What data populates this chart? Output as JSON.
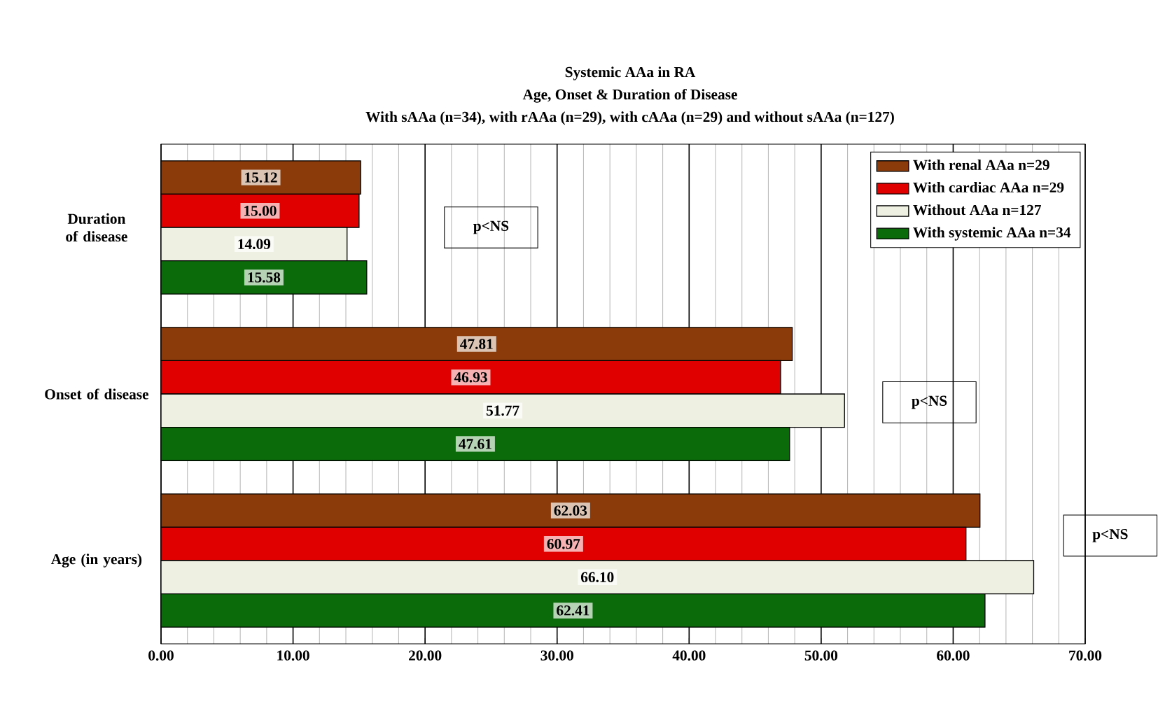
{
  "chart_data": {
    "type": "bar",
    "orientation": "horizontal",
    "title": "Systemic AAa in RA",
    "subtitle": "Age, Onset & Duration of Disease",
    "categories": [
      "Duration of disease",
      "Onset of disease",
      "Age (in years)"
    ],
    "series": [
      {
        "name": "With renal AAa n=29",
        "color": "#8b3a0a",
        "values": [
          15.12,
          47.81,
          62.03
        ],
        "value_labels": [
          "15.12",
          "47.81",
          "62.03"
        ]
      },
      {
        "name": "With cardiac AAa n=29",
        "color": "#e00000",
        "values": [
          15.0,
          46.93,
          60.97
        ],
        "value_labels": [
          "15.00",
          "46.93",
          "60.97"
        ]
      },
      {
        "name": "Without AAa n=127",
        "color": "#eef0e2",
        "values": [
          14.09,
          51.77,
          66.1
        ],
        "value_labels": [
          "14.09",
          "51.77",
          "66.10"
        ]
      },
      {
        "name": "With systemic AAa n=34",
        "color": "#0b6b0b",
        "values": [
          15.58,
          47.61,
          62.41
        ],
        "value_labels": [
          "15.58",
          "47.61",
          "62.41"
        ]
      }
    ],
    "xlim": [
      0,
      70
    ],
    "xticks": [
      {
        "value": 0,
        "label": "0.00"
      },
      {
        "value": 10,
        "label": "10.00"
      },
      {
        "value": 20,
        "label": "20.00"
      },
      {
        "value": 30,
        "label": "30.00"
      },
      {
        "value": 40,
        "label": "40.00"
      },
      {
        "value": 50,
        "label": "50.00"
      },
      {
        "value": 60,
        "label": "60.00"
      },
      {
        "value": 70,
        "label": "70.00"
      }
    ],
    "grid": "x",
    "legend": "top right",
    "annotations": [
      "With sAAa  (n=34), with rAAa (n=29), with cAAa (n=29) and without sAAa (n=127)",
      "p<NS",
      "p<NS",
      "p<NS"
    ]
  }
}
